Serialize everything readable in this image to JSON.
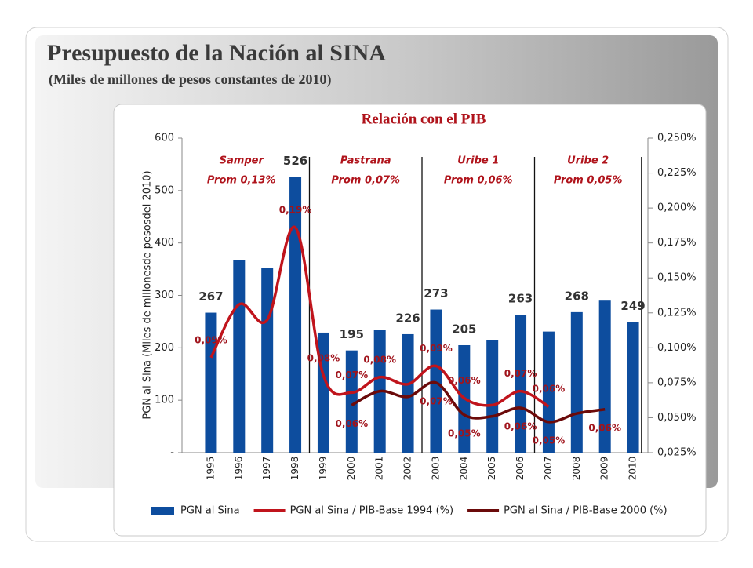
{
  "header": {
    "title": "Presupuesto de la Nación al SINA",
    "subtitle": "(Miles de millones de pesos constantes de 2010)"
  },
  "chart_data": {
    "type": "bar",
    "title": "Relación con el PIB",
    "y_label": "PGN al Sina (Miles de millonesde pesosdel 2010)",
    "categories": [
      "1995",
      "1996",
      "1997",
      "1998",
      "1999",
      "2000",
      "2001",
      "2002",
      "2003",
      "2004",
      "2005",
      "2006",
      "2007",
      "2008",
      "2009",
      "2010"
    ],
    "series": [
      {
        "name": "PGN al Sina",
        "type": "bar",
        "color": "#0d4d9e",
        "values": [
          267,
          367,
          352,
          526,
          229,
          195,
          234,
          226,
          273,
          205,
          214,
          263,
          231,
          268,
          290,
          249
        ],
        "value_labels": [
          "267",
          null,
          null,
          "526",
          null,
          "195",
          null,
          "226",
          "273",
          "205",
          null,
          "263",
          null,
          "268",
          null,
          "249"
        ]
      },
      {
        "name": "PGN al Sina / PIB-Base 1994 (%)",
        "type": "line",
        "axis": "y2",
        "color": "#c0141c",
        "values": [
          0.093,
          0.131,
          0.12,
          0.186,
          0.08,
          0.068,
          0.079,
          0.074,
          0.087,
          0.064,
          0.059,
          0.069,
          0.058,
          null,
          null,
          null
        ],
        "value_labels": [
          "0,09%",
          null,
          null,
          "0,19%",
          "0,08%",
          "0,07%",
          "0,08%",
          null,
          "0,09%",
          "0,06%",
          null,
          "0,07%",
          "0,06%",
          null,
          null,
          null
        ]
      },
      {
        "name": "PGN al Sina / PIB-Base 2000 (%)",
        "type": "line",
        "axis": "y2",
        "color": "#6b0a0a",
        "values": [
          null,
          null,
          null,
          null,
          null,
          0.059,
          0.069,
          0.065,
          0.075,
          0.052,
          0.051,
          0.057,
          0.047,
          0.053,
          0.056,
          null
        ],
        "value_labels": [
          null,
          null,
          null,
          null,
          null,
          "0,06%",
          null,
          null,
          "0,07%",
          "0,05%",
          null,
          "0,06%",
          "0,05%",
          null,
          "0,06%",
          null
        ]
      }
    ],
    "ylim": [
      0,
      600
    ],
    "yticks": [
      {
        "value": 0,
        "label": "-"
      },
      100,
      200,
      300,
      400,
      500,
      600
    ],
    "y2lim": [
      0.025,
      0.25
    ],
    "y2ticks": [
      {
        "value": 0.025,
        "label": "0,025%"
      },
      {
        "value": 0.05,
        "label": "0,050%"
      },
      {
        "value": 0.075,
        "label": "0,075%"
      },
      {
        "value": 0.1,
        "label": "0,100%"
      },
      {
        "value": 0.125,
        "label": "0,125%"
      },
      {
        "value": 0.15,
        "label": "0,150%"
      },
      {
        "value": 0.175,
        "label": "0,175%"
      },
      {
        "value": 0.2,
        "label": "0,200%"
      },
      {
        "value": 0.225,
        "label": "0,225%"
      },
      {
        "value": 0.25,
        "label": "0,250%"
      }
    ],
    "periods": [
      {
        "name": "Samper",
        "avg": "Prom 0,13%"
      },
      {
        "name": "Pastrana",
        "avg": "Prom 0,07%"
      },
      {
        "name": "Uribe 1",
        "avg": "Prom 0,06%"
      },
      {
        "name": "Uribe 2",
        "avg": "Prom 0,05%"
      }
    ],
    "grid": false,
    "legend": "bottom"
  }
}
